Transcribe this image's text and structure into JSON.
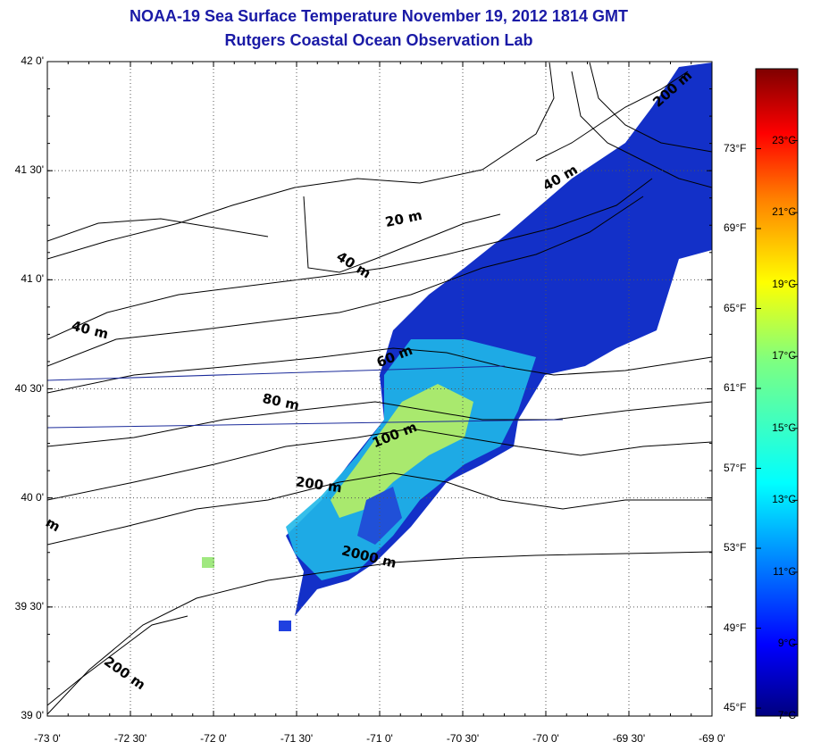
{
  "title": "NOAA-19 Sea Surface Temperature November 19, 2012 1814 GMT",
  "subtitle": "Rutgers Coastal Ocean Observation Lab",
  "map": {
    "lon_range": [
      -73.0,
      -69.0
    ],
    "lat_range": [
      39.0,
      42.0
    ],
    "grid": "dotted",
    "lon_ticks": [
      {
        "value": -73.0,
        "label": "-73 0'"
      },
      {
        "value": -72.5,
        "label": "-72 30'"
      },
      {
        "value": -72.0,
        "label": "-72 0'"
      },
      {
        "value": -71.5,
        "label": "-71 30'"
      },
      {
        "value": -71.0,
        "label": "-71 0'"
      },
      {
        "value": -70.5,
        "label": "-70 30'"
      },
      {
        "value": -70.0,
        "label": "-70 0'"
      },
      {
        "value": -69.5,
        "label": "-69 30'"
      },
      {
        "value": -69.0,
        "label": "-69 0'"
      }
    ],
    "lat_ticks": [
      {
        "value": 42.0,
        "label": "42 0'"
      },
      {
        "value": 41.5,
        "label": "41 30'"
      },
      {
        "value": 41.0,
        "label": "41 0'"
      },
      {
        "value": 40.5,
        "label": "40 30'"
      },
      {
        "value": 40.0,
        "label": "40 0'"
      },
      {
        "value": 39.5,
        "label": "39 30'"
      },
      {
        "value": 39.0,
        "label": "39 0'"
      }
    ],
    "isobath_labels": [
      {
        "text": "200 m",
        "lon": -69.22,
        "lat": 41.86,
        "angle": 42
      },
      {
        "text": "40 m",
        "lon": -69.9,
        "lat": 41.45,
        "angle": 30
      },
      {
        "text": "20 m",
        "lon": -70.85,
        "lat": 41.26,
        "angle": 12
      },
      {
        "text": "40 m",
        "lon": -71.17,
        "lat": 41.05,
        "angle": -32
      },
      {
        "text": "40 m",
        "lon": -72.75,
        "lat": 40.75,
        "angle": -14
      },
      {
        "text": "60 m",
        "lon": -70.9,
        "lat": 40.63,
        "angle": 22
      },
      {
        "text": "80 m",
        "lon": -71.6,
        "lat": 40.42,
        "angle": -12
      },
      {
        "text": "100 m",
        "lon": -70.9,
        "lat": 40.27,
        "angle": 22
      },
      {
        "text": "200 m",
        "lon": -71.37,
        "lat": 40.04,
        "angle": -8
      },
      {
        "text": "2000 m",
        "lon": -71.07,
        "lat": 39.71,
        "angle": -14
      },
      {
        "text": "200 m",
        "lon": -72.55,
        "lat": 39.18,
        "angle": -35
      },
      {
        "text": "m",
        "lon": -72.98,
        "lat": 39.86,
        "angle": -30
      }
    ]
  },
  "colorbar": {
    "celsius_labels": [
      "23°C",
      "21°C",
      "19°C",
      "17°C",
      "15°C",
      "13°C",
      "11°C",
      "9°C",
      "7°C"
    ],
    "fahrenheit_labels": [
      "73°F",
      "69°F",
      "65°F",
      "61°F",
      "57°F",
      "53°F",
      "49°F",
      "45°F"
    ],
    "min_c": 7,
    "max_c": 25,
    "colors": [
      "#00007f",
      "#0000ff",
      "#007fff",
      "#00ffff",
      "#7fff7f",
      "#ffff00",
      "#ff7f00",
      "#ff0000",
      "#7f0000"
    ]
  },
  "sst_patches": [
    {
      "lon": -69.6,
      "lat": 41.3,
      "temp_c": 8
    },
    {
      "lon": -70.2,
      "lat": 41.0,
      "temp_c": 8.3
    },
    {
      "lon": -70.6,
      "lat": 40.85,
      "temp_c": 9.5
    },
    {
      "lon": -70.75,
      "lat": 40.55,
      "temp_c": 12.5
    },
    {
      "lon": -70.95,
      "lat": 40.35,
      "temp_c": 14.5
    },
    {
      "lon": -71.2,
      "lat": 40.1,
      "temp_c": 15.5
    },
    {
      "lon": -71.3,
      "lat": 39.9,
      "temp_c": 13
    },
    {
      "lon": -71.15,
      "lat": 39.65,
      "temp_c": 10
    }
  ]
}
